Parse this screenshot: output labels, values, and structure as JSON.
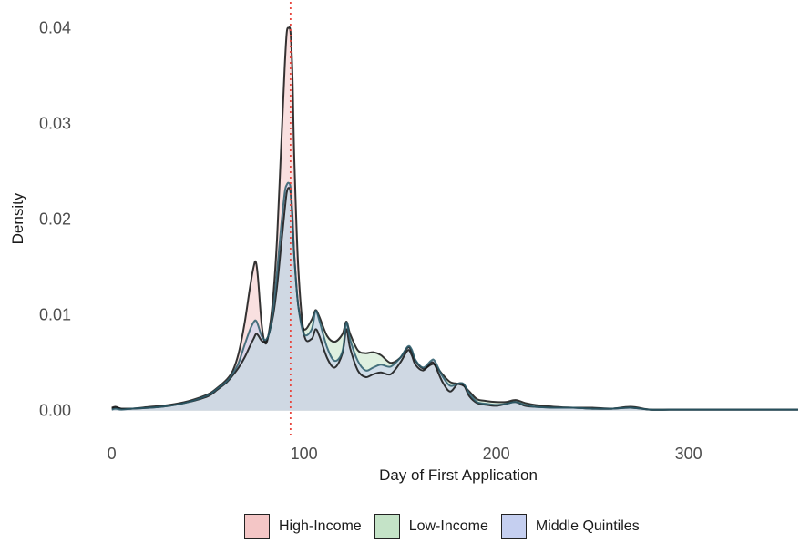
{
  "chart_data": {
    "type": "area",
    "xlabel": "Day of First Application",
    "ylabel": "Density",
    "xlim": [
      -6,
      358
    ],
    "ylim": [
      -0.0007,
      0.0415
    ],
    "x_ticks": [
      0,
      100,
      200,
      300
    ],
    "x_tick_labels": [
      "0",
      "100",
      "200",
      "300"
    ],
    "y_ticks": [
      0,
      0.01,
      0.02,
      0.03,
      0.04
    ],
    "y_tick_labels": [
      "0.00",
      "0.01",
      "0.02",
      "0.03",
      "0.04"
    ],
    "grid": false,
    "legend_position": "bottom",
    "reference_line": {
      "x": 93,
      "style": "dotted",
      "color": "#e8473f"
    },
    "series": [
      {
        "name": "High-Income",
        "fill": "#f4c6c6",
        "x": [
          0,
          2,
          5,
          10,
          20,
          30,
          40,
          50,
          55,
          60,
          63,
          66,
          69,
          72,
          74,
          75,
          76,
          78,
          80,
          82,
          84,
          86,
          88,
          90,
          91,
          92,
          93,
          94,
          95,
          97,
          100,
          104,
          106,
          108,
          112,
          116,
          120,
          122,
          124,
          128,
          132,
          136,
          140,
          145,
          150,
          154,
          156,
          158,
          162,
          166,
          168,
          172,
          176,
          180,
          183,
          186,
          190,
          195,
          200,
          205,
          210,
          215,
          220,
          230,
          240,
          250,
          260,
          270,
          280,
          290,
          300,
          320,
          340,
          357
        ],
        "values": [
          0.0003,
          0.0004,
          0.0002,
          0.0002,
          0.0004,
          0.0006,
          0.001,
          0.0017,
          0.0024,
          0.0033,
          0.0042,
          0.006,
          0.009,
          0.013,
          0.0152,
          0.0155,
          0.014,
          0.009,
          0.007,
          0.0085,
          0.012,
          0.018,
          0.027,
          0.036,
          0.0395,
          0.04,
          0.0395,
          0.035,
          0.026,
          0.015,
          0.008,
          0.0075,
          0.0085,
          0.0078,
          0.0055,
          0.0045,
          0.006,
          0.0085,
          0.0065,
          0.0042,
          0.0035,
          0.0038,
          0.004,
          0.0038,
          0.005,
          0.0063,
          0.0058,
          0.0048,
          0.0042,
          0.005,
          0.0048,
          0.003,
          0.002,
          0.0028,
          0.0027,
          0.0015,
          0.0008,
          0.0006,
          0.0005,
          0.0007,
          0.0009,
          0.0005,
          0.0004,
          0.0003,
          0.0003,
          0.0002,
          0.0002,
          0.0004,
          0.0001,
          0.0001,
          0.0001,
          0.0001,
          0.0001,
          0.0001
        ]
      },
      {
        "name": "Low-Income",
        "fill": "#c4e3c7",
        "x": [
          0,
          2,
          5,
          10,
          20,
          30,
          40,
          50,
          55,
          60,
          63,
          66,
          69,
          72,
          74,
          75,
          76,
          78,
          80,
          82,
          84,
          86,
          88,
          90,
          91,
          92,
          93,
          94,
          95,
          97,
          100,
          104,
          106,
          108,
          112,
          116,
          120,
          122,
          124,
          128,
          132,
          136,
          140,
          145,
          150,
          154,
          156,
          158,
          162,
          166,
          168,
          172,
          176,
          180,
          183,
          186,
          190,
          195,
          200,
          205,
          210,
          215,
          220,
          230,
          240,
          250,
          260,
          270,
          280,
          290,
          300,
          320,
          340,
          357
        ],
        "values": [
          0.0002,
          0.0003,
          0.0002,
          0.0002,
          0.0003,
          0.0005,
          0.0009,
          0.0015,
          0.0022,
          0.003,
          0.0037,
          0.0045,
          0.0055,
          0.0068,
          0.0076,
          0.008,
          0.0079,
          0.0073,
          0.0072,
          0.0082,
          0.01,
          0.013,
          0.017,
          0.021,
          0.0228,
          0.0233,
          0.0228,
          0.02,
          0.016,
          0.011,
          0.0085,
          0.0095,
          0.0105,
          0.0098,
          0.0078,
          0.0072,
          0.008,
          0.0093,
          0.008,
          0.0063,
          0.006,
          0.0061,
          0.0058,
          0.005,
          0.0055,
          0.0066,
          0.0062,
          0.0052,
          0.0044,
          0.0048,
          0.0048,
          0.0038,
          0.003,
          0.0028,
          0.0026,
          0.002,
          0.0012,
          0.001,
          0.0009,
          0.0009,
          0.0011,
          0.0008,
          0.0006,
          0.0004,
          0.0003,
          0.0003,
          0.0002,
          0.0003,
          0.0001,
          0.0001,
          0.0001,
          0.0001,
          0.0001,
          0.0001
        ]
      },
      {
        "name": "Middle Quintiles",
        "fill": "#c5cff0",
        "x": [
          0,
          2,
          5,
          10,
          20,
          30,
          40,
          50,
          55,
          60,
          63,
          66,
          69,
          72,
          74,
          75,
          76,
          78,
          80,
          82,
          84,
          86,
          88,
          90,
          91,
          92,
          93,
          94,
          95,
          97,
          100,
          104,
          106,
          108,
          112,
          116,
          120,
          122,
          124,
          128,
          132,
          136,
          140,
          145,
          150,
          154,
          156,
          158,
          162,
          166,
          168,
          172,
          176,
          180,
          183,
          186,
          190,
          195,
          200,
          205,
          210,
          215,
          220,
          230,
          240,
          250,
          260,
          270,
          280,
          290,
          300,
          320,
          340,
          357
        ],
        "values": [
          0.0001,
          0.0002,
          0.0001,
          0.0002,
          0.0003,
          0.0005,
          0.0009,
          0.0016,
          0.0023,
          0.0031,
          0.0039,
          0.005,
          0.0068,
          0.0085,
          0.0093,
          0.0094,
          0.009,
          0.0078,
          0.0074,
          0.0082,
          0.0105,
          0.0145,
          0.019,
          0.0228,
          0.0236,
          0.0238,
          0.0233,
          0.0205,
          0.016,
          0.011,
          0.008,
          0.0085,
          0.0104,
          0.0094,
          0.0066,
          0.0052,
          0.0062,
          0.0092,
          0.0074,
          0.0052,
          0.0042,
          0.0045,
          0.0048,
          0.0046,
          0.0055,
          0.0067,
          0.0064,
          0.0053,
          0.0045,
          0.0052,
          0.0052,
          0.0036,
          0.0026,
          0.0028,
          0.0028,
          0.0018,
          0.0009,
          0.0007,
          0.0006,
          0.0007,
          0.0009,
          0.0006,
          0.0004,
          0.0003,
          0.0003,
          0.0002,
          0.0002,
          0.0003,
          0.0001,
          0.0001,
          0.0001,
          0.0001,
          0.0001,
          0.0001
        ]
      }
    ]
  }
}
